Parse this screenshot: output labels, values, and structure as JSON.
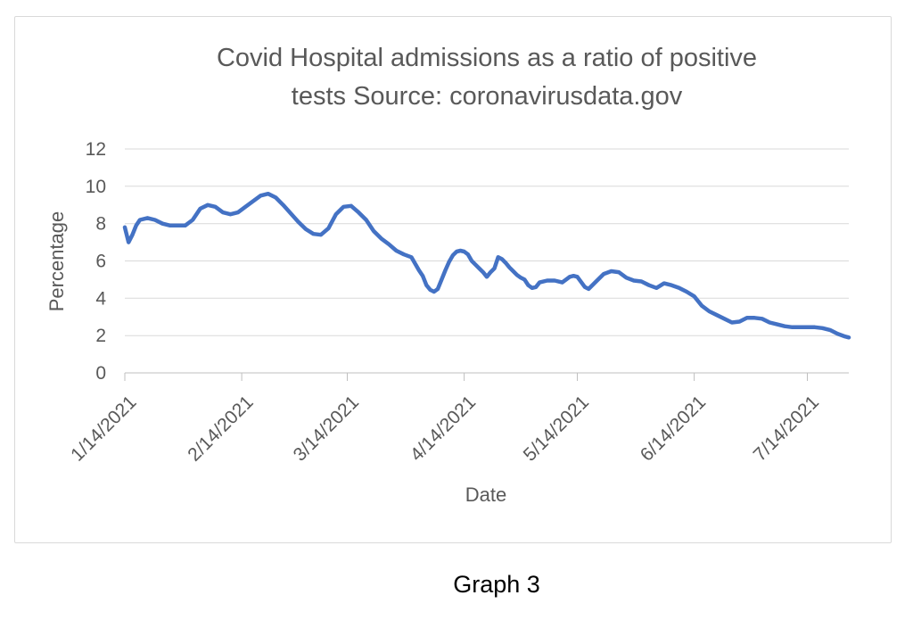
{
  "caption": "Graph 3",
  "chart_data": {
    "type": "line",
    "title": "Covid Hospital admissions as a ratio of positive tests Source: coronavirusdata.gov",
    "title_lines": [
      "Covid Hospital admissions as a ratio of positive",
      "tests Source: coronavirusdata.gov"
    ],
    "xlabel": "Date",
    "ylabel": "Percentage",
    "ylim": [
      0,
      12
    ],
    "yticks": [
      0,
      2,
      4,
      6,
      8,
      10,
      12
    ],
    "xticks": [
      "1/14/2021",
      "2/14/2021",
      "3/14/2021",
      "4/14/2021",
      "5/14/2021",
      "6/14/2021",
      "7/14/2021"
    ],
    "x_domain": [
      "1/14/2021",
      "7/25/2021"
    ],
    "grid": true,
    "legend": false,
    "colors": {
      "line": "#4472C4",
      "grid": "#D9D9D9",
      "axis": "#BFBFBF",
      "text": "#595959",
      "caption": "#000000",
      "frame_border": "#D9D9D9"
    },
    "series": [
      {
        "x": [
          "1/14/2021",
          "1/15/2021",
          "1/16/2021",
          "1/17/2021",
          "1/18/2021",
          "1/20/2021",
          "1/22/2021",
          "1/24/2021",
          "1/26/2021",
          "1/28/2021",
          "1/30/2021",
          "2/1/2021",
          "2/3/2021",
          "2/5/2021",
          "2/7/2021",
          "2/9/2021",
          "2/11/2021",
          "2/13/2021",
          "2/15/2021",
          "2/17/2021",
          "2/19/2021",
          "2/21/2021",
          "2/23/2021",
          "2/25/2021",
          "2/27/2021",
          "3/1/2021",
          "3/3/2021",
          "3/5/2021",
          "3/7/2021",
          "3/9/2021",
          "3/11/2021",
          "3/13/2021",
          "3/15/2021",
          "3/17/2021",
          "3/19/2021",
          "3/21/2021",
          "3/23/2021",
          "3/25/2021",
          "3/27/2021",
          "3/29/2021",
          "3/31/2021",
          "4/2/2021",
          "4/3/2021",
          "4/4/2021",
          "4/5/2021",
          "4/6/2021",
          "4/7/2021",
          "4/8/2021",
          "4/9/2021",
          "4/10/2021",
          "4/11/2021",
          "4/12/2021",
          "4/13/2021",
          "4/14/2021",
          "4/15/2021",
          "4/16/2021",
          "4/17/2021",
          "4/18/2021",
          "4/19/2021",
          "4/20/2021",
          "4/21/2021",
          "4/22/2021",
          "4/23/2021",
          "4/24/2021",
          "4/25/2021",
          "4/26/2021",
          "4/27/2021",
          "4/28/2021",
          "4/29/2021",
          "4/30/2021",
          "5/1/2021",
          "5/2/2021",
          "5/3/2021",
          "5/4/2021",
          "5/6/2021",
          "5/8/2021",
          "5/10/2021",
          "5/12/2021",
          "5/13/2021",
          "5/14/2021",
          "5/16/2021",
          "5/17/2021",
          "5/19/2021",
          "5/21/2021",
          "5/23/2021",
          "5/25/2021",
          "5/27/2021",
          "5/29/2021",
          "5/31/2021",
          "6/2/2021",
          "6/4/2021",
          "6/6/2021",
          "6/8/2021",
          "6/10/2021",
          "6/12/2021",
          "6/14/2021",
          "6/16/2021",
          "6/18/2021",
          "6/20/2021",
          "6/22/2021",
          "6/24/2021",
          "6/26/2021",
          "6/28/2021",
          "6/30/2021",
          "7/2/2021",
          "7/4/2021",
          "7/6/2021",
          "7/8/2021",
          "7/10/2021",
          "7/12/2021",
          "7/14/2021",
          "7/16/2021",
          "7/18/2021",
          "7/20/2021",
          "7/22/2021",
          "7/24/2021",
          "7/25/2021"
        ],
        "y": [
          7.8,
          7.0,
          7.4,
          7.9,
          8.2,
          8.3,
          8.2,
          8.0,
          7.9,
          7.9,
          7.9,
          8.2,
          8.8,
          9.0,
          8.9,
          8.6,
          8.5,
          8.6,
          8.9,
          9.2,
          9.5,
          9.6,
          9.4,
          9.0,
          8.55,
          8.1,
          7.7,
          7.45,
          7.4,
          7.75,
          8.5,
          8.9,
          8.95,
          8.6,
          8.2,
          7.6,
          7.2,
          6.9,
          6.55,
          6.35,
          6.2,
          5.5,
          5.2,
          4.7,
          4.45,
          4.35,
          4.5,
          5.0,
          5.5,
          5.95,
          6.3,
          6.5,
          6.55,
          6.5,
          6.35,
          6.0,
          5.8,
          5.6,
          5.4,
          5.15,
          5.4,
          5.6,
          6.2,
          6.1,
          5.9,
          5.65,
          5.45,
          5.25,
          5.1,
          5.0,
          4.7,
          4.55,
          4.6,
          4.85,
          4.95,
          4.95,
          4.85,
          5.15,
          5.2,
          5.15,
          4.6,
          4.5,
          4.9,
          5.3,
          5.45,
          5.4,
          5.1,
          4.95,
          4.9,
          4.7,
          4.55,
          4.8,
          4.7,
          4.55,
          4.35,
          4.1,
          3.6,
          3.3,
          3.1,
          2.9,
          2.7,
          2.75,
          2.95,
          2.95,
          2.9,
          2.7,
          2.6,
          2.5,
          2.45,
          2.45,
          2.45,
          2.45,
          2.4,
          2.3,
          2.1,
          1.95,
          1.9
        ]
      }
    ]
  }
}
